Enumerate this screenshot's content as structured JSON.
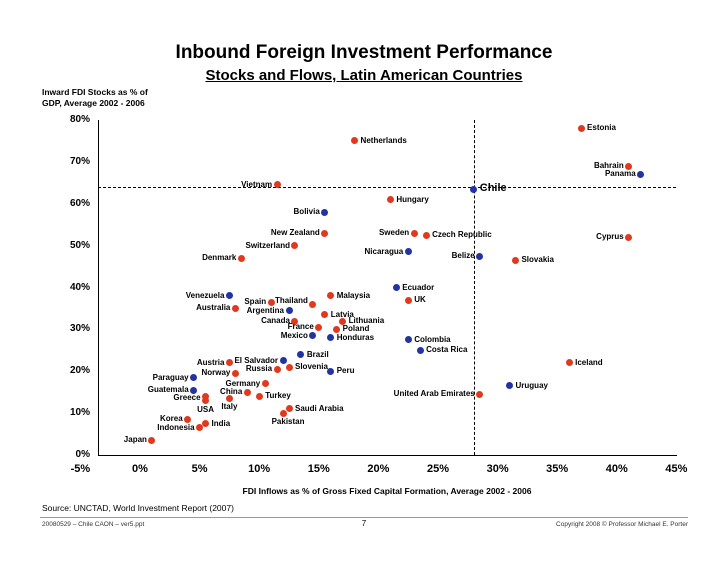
{
  "slide": {
    "source": "Source: UNCTAD, World Investment Report (2007)",
    "footer_left": "20080529 – Chile CAON – ver5.ppt",
    "footer_page": "7",
    "footer_right": "Copyright 2008 © Professor Michael E. Porter"
  },
  "chart_data": {
    "type": "scatter",
    "title": "Inbound Foreign Investment Performance",
    "subtitle": "Stocks and Flows, Latin American Countries",
    "ylabel_lines": [
      "Inward FDI Stocks as % of",
      "GDP, Average 2002 - 2006"
    ],
    "xlabel": "FDI Inflows as % of Gross Fixed Capital Formation, Average 2002 - 2006",
    "xlim": [
      -5,
      45
    ],
    "ylim": [
      0,
      80
    ],
    "x_ticks": [
      "-5%",
      "0%",
      "5%",
      "10%",
      "15%",
      "20%",
      "25%",
      "30%",
      "35%",
      "40%",
      "45%"
    ],
    "x_tick_values": [
      -5,
      0,
      5,
      10,
      15,
      20,
      25,
      30,
      35,
      40,
      45
    ],
    "y_ticks": [
      "0%",
      "10%",
      "20%",
      "30%",
      "40%",
      "50%",
      "60%",
      "70%",
      "80%"
    ],
    "y_tick_values": [
      0,
      10,
      20,
      30,
      40,
      50,
      60,
      70,
      80
    ],
    "grid": false,
    "reference_lines": {
      "vertical_x": 28,
      "horizontal_y": 64
    },
    "colors": {
      "latam": "#2233a2",
      "other": "#e0391e"
    },
    "points": [
      {
        "name": "Estonia",
        "x": 37,
        "y": 78,
        "group": "other",
        "side": "right"
      },
      {
        "name": "Netherlands",
        "x": 18,
        "y": 75,
        "group": "other",
        "side": "right"
      },
      {
        "name": "Bahrain",
        "x": 41,
        "y": 69,
        "group": "other",
        "side": "left"
      },
      {
        "name": "Panama",
        "x": 42,
        "y": 67,
        "group": "latam",
        "side": "left"
      },
      {
        "name": "Vietnam",
        "x": 11.5,
        "y": 64.5,
        "group": "other",
        "side": "left"
      },
      {
        "name": "Chile",
        "x": 28,
        "y": 63.5,
        "group": "latam",
        "side": "right",
        "bold": true
      },
      {
        "name": "Hungary",
        "x": 21,
        "y": 61,
        "group": "other",
        "side": "right"
      },
      {
        "name": "Bolivia",
        "x": 15.5,
        "y": 58,
        "group": "latam",
        "side": "left"
      },
      {
        "name": "New Zealand",
        "x": 15.5,
        "y": 53,
        "group": "other",
        "side": "left"
      },
      {
        "name": "Sweden",
        "x": 23,
        "y": 53,
        "group": "other",
        "side": "left"
      },
      {
        "name": "Czech Republic",
        "x": 24,
        "y": 52.5,
        "group": "other",
        "side": "right"
      },
      {
        "name": "Cyprus",
        "x": 41,
        "y": 52,
        "group": "other",
        "side": "left"
      },
      {
        "name": "Switzerland",
        "x": 13,
        "y": 50,
        "group": "other",
        "side": "left"
      },
      {
        "name": "Nicaragua",
        "x": 22.5,
        "y": 48.5,
        "group": "latam",
        "side": "left"
      },
      {
        "name": "Belize",
        "x": 28.5,
        "y": 47.5,
        "group": "latam",
        "side": "left"
      },
      {
        "name": "Slovakia",
        "x": 31.5,
        "y": 46.5,
        "group": "other",
        "side": "right"
      },
      {
        "name": "Denmark",
        "x": 8.5,
        "y": 47,
        "group": "other",
        "side": "left"
      },
      {
        "name": "Ecuador",
        "x": 21.5,
        "y": 40,
        "group": "latam",
        "side": "right"
      },
      {
        "name": "UK",
        "x": 22.5,
        "y": 37,
        "group": "other",
        "side": "right"
      },
      {
        "name": "Malaysia",
        "x": 16,
        "y": 38,
        "group": "other",
        "side": "right"
      },
      {
        "name": "Venezuela",
        "x": 7.5,
        "y": 38,
        "group": "latam",
        "side": "left"
      },
      {
        "name": "Spain",
        "x": 11,
        "y": 36.5,
        "group": "other",
        "side": "left"
      },
      {
        "name": "Thailand",
        "x": 14.5,
        "y": 36,
        "group": "other",
        "side": "left",
        "dy": -3
      },
      {
        "name": "Australia",
        "x": 8,
        "y": 35,
        "group": "other",
        "side": "left"
      },
      {
        "name": "Argentina",
        "x": 12.5,
        "y": 34.5,
        "group": "latam",
        "side": "left"
      },
      {
        "name": "Latvia",
        "x": 15.5,
        "y": 33.5,
        "group": "other",
        "side": "right"
      },
      {
        "name": "Canada",
        "x": 13,
        "y": 32,
        "group": "other",
        "side": "left"
      },
      {
        "name": "Lithuania",
        "x": 17,
        "y": 32,
        "group": "other",
        "side": "right"
      },
      {
        "name": "France",
        "x": 15,
        "y": 30.5,
        "group": "other",
        "side": "left"
      },
      {
        "name": "Poland",
        "x": 16.5,
        "y": 30,
        "group": "other",
        "side": "right"
      },
      {
        "name": "Mexico",
        "x": 14.5,
        "y": 28.5,
        "group": "latam",
        "side": "left"
      },
      {
        "name": "Honduras",
        "x": 16,
        "y": 28,
        "group": "latam",
        "side": "right"
      },
      {
        "name": "Colombia",
        "x": 22.5,
        "y": 27.5,
        "group": "latam",
        "side": "right"
      },
      {
        "name": "Costa Rica",
        "x": 23.5,
        "y": 25,
        "group": "latam",
        "side": "right"
      },
      {
        "name": "Brazil",
        "x": 13.5,
        "y": 24,
        "group": "latam",
        "side": "right"
      },
      {
        "name": "El Salvador",
        "x": 12,
        "y": 22.5,
        "group": "latam",
        "side": "left"
      },
      {
        "name": "Austria",
        "x": 7.5,
        "y": 22,
        "group": "other",
        "side": "left"
      },
      {
        "name": "Russia",
        "x": 11.5,
        "y": 20.5,
        "group": "other",
        "side": "left"
      },
      {
        "name": "Slovenia",
        "x": 12.5,
        "y": 21,
        "group": "other",
        "side": "right"
      },
      {
        "name": "Peru",
        "x": 16,
        "y": 20,
        "group": "latam",
        "side": "right"
      },
      {
        "name": "Iceland",
        "x": 36,
        "y": 22,
        "group": "other",
        "side": "right"
      },
      {
        "name": "Norway",
        "x": 8,
        "y": 19.5,
        "group": "other",
        "side": "left"
      },
      {
        "name": "Germany",
        "x": 10.5,
        "y": 17,
        "group": "other",
        "side": "left"
      },
      {
        "name": "Paraguay",
        "x": 4.5,
        "y": 18.5,
        "group": "latam",
        "side": "left"
      },
      {
        "name": "Guatemala",
        "x": 4.5,
        "y": 15.5,
        "group": "latam",
        "side": "left"
      },
      {
        "name": "Greece",
        "x": 5.5,
        "y": 14,
        "group": "other",
        "side": "left",
        "dy": 2
      },
      {
        "name": "China",
        "x": 9,
        "y": 15,
        "group": "other",
        "side": "left"
      },
      {
        "name": "Turkey",
        "x": 10,
        "y": 14,
        "group": "other",
        "side": "right"
      },
      {
        "name": "United Arab Emirates",
        "x": 28.5,
        "y": 14.5,
        "group": "other",
        "side": "left"
      },
      {
        "name": "Uruguay",
        "x": 31,
        "y": 16.5,
        "group": "latam",
        "side": "right"
      },
      {
        "name": "USA",
        "x": 5.5,
        "y": 13,
        "group": "other",
        "side": "below"
      },
      {
        "name": "Italy",
        "x": 7.5,
        "y": 13.5,
        "group": "other",
        "side": "below"
      },
      {
        "name": "Saudi Arabia",
        "x": 12.5,
        "y": 11,
        "group": "other",
        "side": "right"
      },
      {
        "name": "Korea",
        "x": 4,
        "y": 8.5,
        "group": "other",
        "side": "left"
      },
      {
        "name": "Pakistan",
        "x": 12,
        "y": 10,
        "group": "other",
        "side": "below",
        "dx": 5
      },
      {
        "name": "Indonesia",
        "x": 5,
        "y": 6.5,
        "group": "other",
        "side": "left"
      },
      {
        "name": "India",
        "x": 5.5,
        "y": 7.5,
        "group": "other",
        "side": "right"
      },
      {
        "name": "Japan",
        "x": 1,
        "y": 3.5,
        "group": "other",
        "side": "left"
      }
    ]
  }
}
